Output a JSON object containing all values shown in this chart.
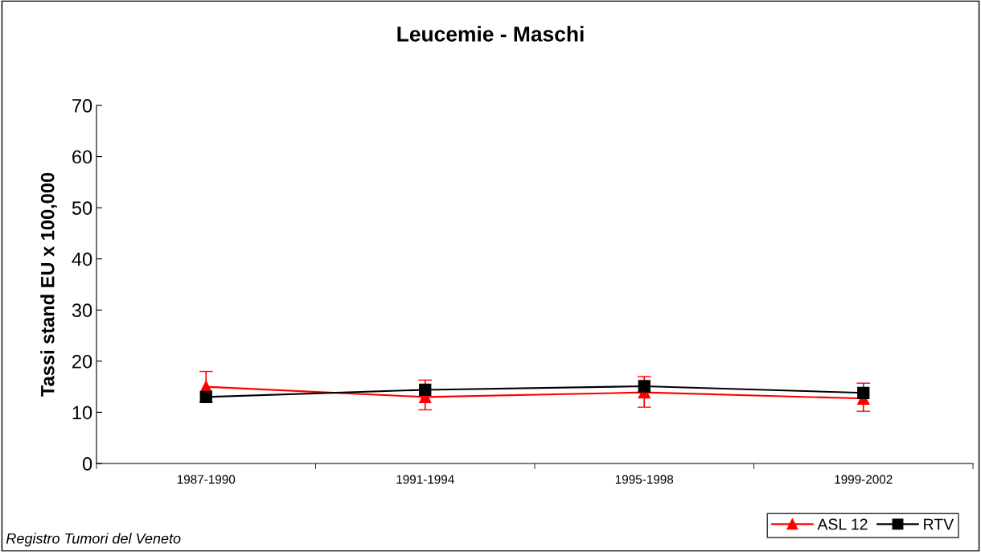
{
  "chart_data": {
    "type": "line",
    "title": "Leucemie - Maschi",
    "ylabel": "Tassi stand EU x 100,000",
    "categories": [
      "1987-1990",
      "1991-1994",
      "1995-1998",
      "1999-2002"
    ],
    "series": [
      {
        "name": "ASL 12",
        "color": "#ff0000",
        "marker": "triangle",
        "values": [
          15.0,
          13.0,
          13.9,
          12.7
        ],
        "errors": [
          [
            12.0,
            18.0
          ],
          [
            10.5,
            16.3
          ],
          [
            11.0,
            17.0
          ],
          [
            10.2,
            15.7
          ]
        ]
      },
      {
        "name": "RTV",
        "color": "#000000",
        "marker": "square",
        "values": [
          13.0,
          14.4,
          15.1,
          13.8
        ]
      }
    ],
    "ylim": [
      0,
      70
    ],
    "yticks": [
      0,
      10,
      20,
      30,
      40,
      50,
      60,
      70
    ],
    "grid": false,
    "legend": "bottom right",
    "line_style": "solid",
    "annotations": [
      "Registro Tumori del Veneto"
    ]
  }
}
